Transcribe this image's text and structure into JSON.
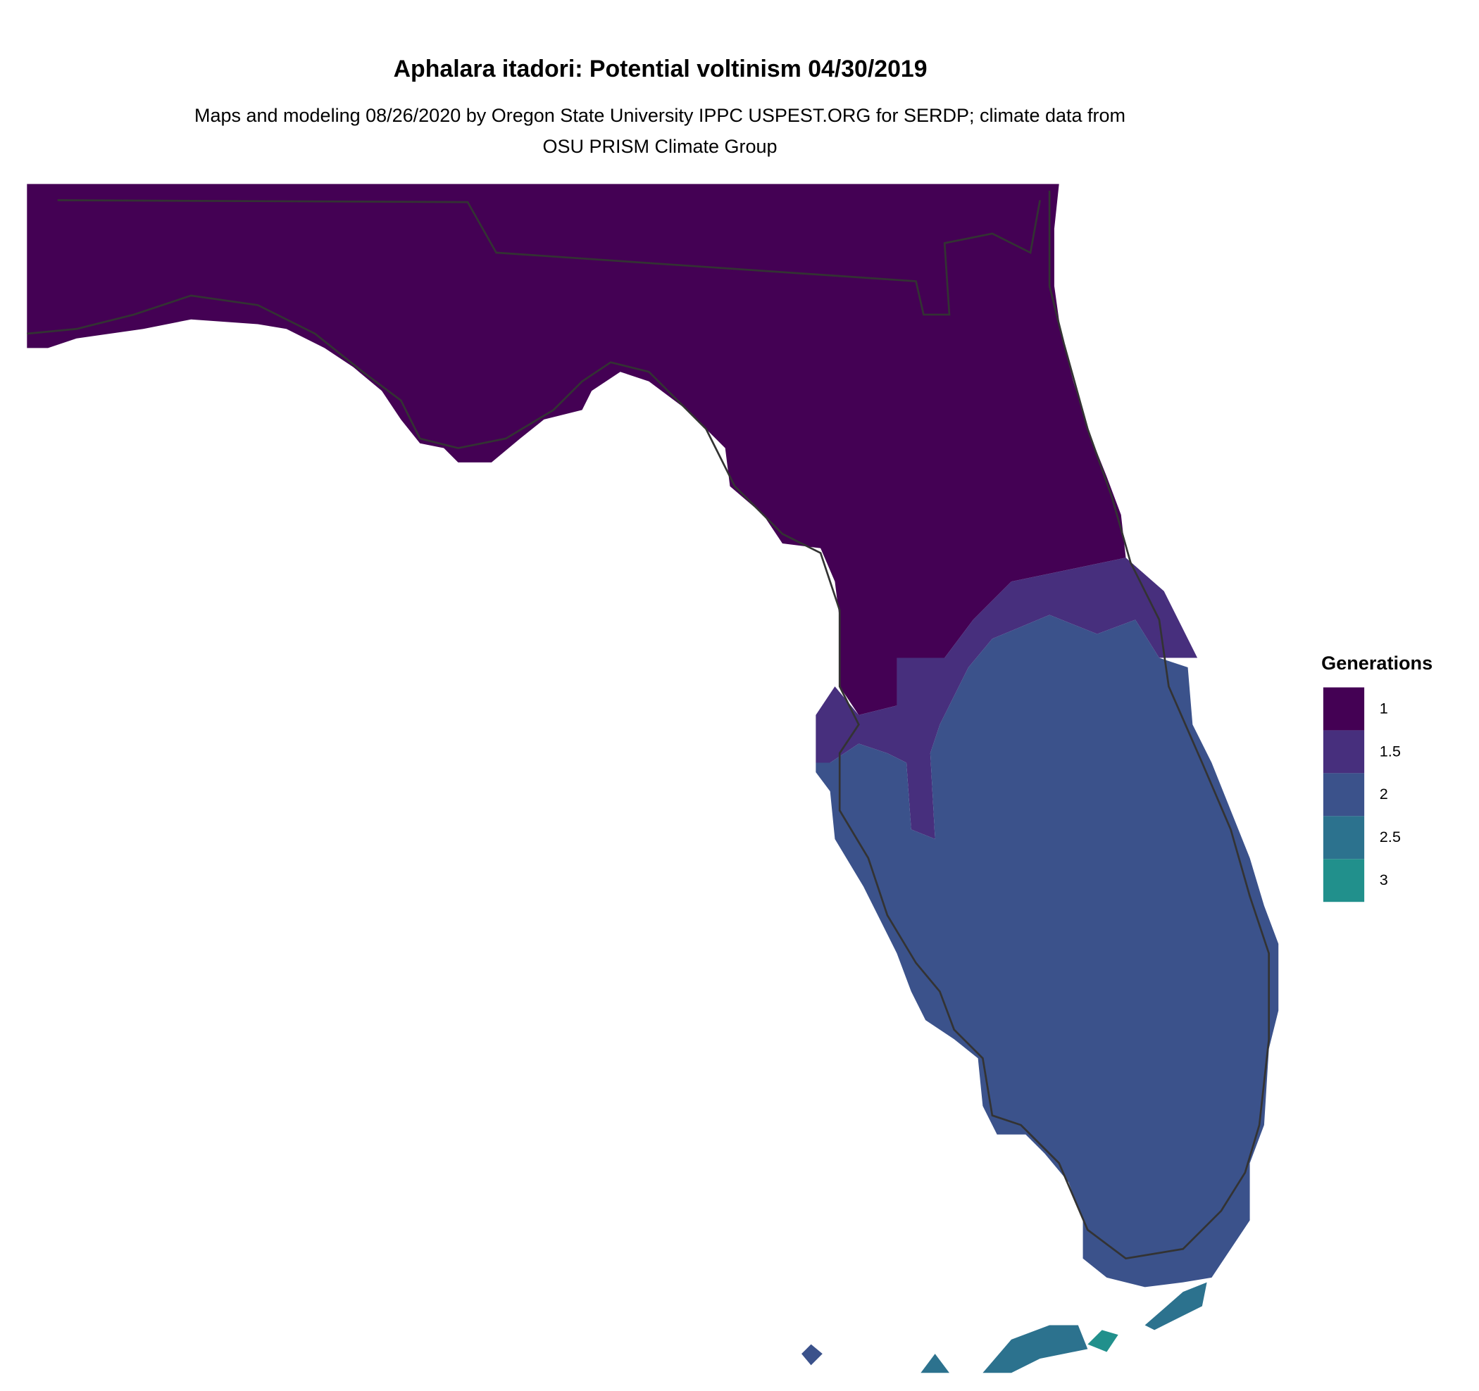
{
  "title": "Aphalara itadori: Potential voltinism 04/30/2019",
  "subtitle": "Maps and modeling 08/26/2020 by Oregon State University IPPC USPEST.ORG for SERDP; climate data from OSU PRISM Climate Group",
  "legend": {
    "title": "Generations",
    "items": [
      {
        "label": 1,
        "color": "#440154"
      },
      {
        "label": 1.5,
        "color": "#472f7d"
      },
      {
        "label": 2,
        "color": "#3b528b"
      },
      {
        "label": 2.5,
        "color": "#2c728e"
      },
      {
        "label": 3,
        "color": "#21908c"
      }
    ]
  }
}
